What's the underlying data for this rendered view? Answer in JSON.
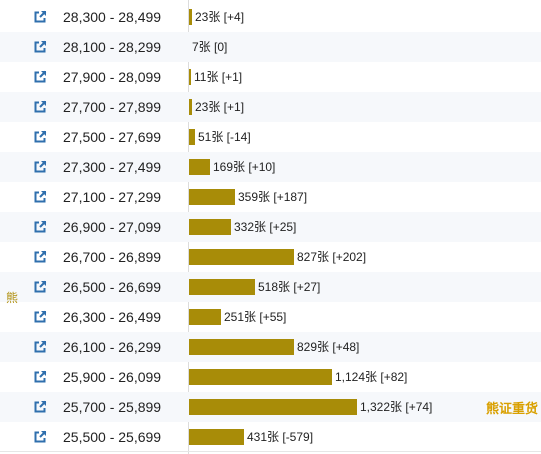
{
  "side_label": "熊",
  "tag_label": "熊证重货",
  "icon": "external-link-icon",
  "bar_color": "#a88c08",
  "bar_max_value": 1322,
  "rows": [
    {
      "range": "28,300 - 28,499",
      "value": 23,
      "value_label": "23张 [+4]"
    },
    {
      "range": "28,100 - 28,299",
      "value": 7,
      "value_label": "7张 [0]"
    },
    {
      "range": "27,900 - 28,099",
      "value": 11,
      "value_label": "11张 [+1]"
    },
    {
      "range": "27,700 - 27,899",
      "value": 23,
      "value_label": "23张 [+1]"
    },
    {
      "range": "27,500 - 27,699",
      "value": 51,
      "value_label": "51张 [-14]"
    },
    {
      "range": "27,300 - 27,499",
      "value": 169,
      "value_label": "169张 [+10]"
    },
    {
      "range": "27,100 - 27,299",
      "value": 359,
      "value_label": "359张 [+187]"
    },
    {
      "range": "26,900 - 27,099",
      "value": 332,
      "value_label": "332张 [+25]"
    },
    {
      "range": "26,700 - 26,899",
      "value": 827,
      "value_label": "827张 [+202]"
    },
    {
      "range": "26,500 - 26,699",
      "value": 518,
      "value_label": "518张 [+27]"
    },
    {
      "range": "26,300 - 26,499",
      "value": 251,
      "value_label": "251张 [+55]"
    },
    {
      "range": "26,100 - 26,299",
      "value": 829,
      "value_label": "829张 [+48]"
    },
    {
      "range": "25,900 - 26,099",
      "value": 1124,
      "value_label": "1,124张 [+82]"
    },
    {
      "range": "25,700 - 25,899",
      "value": 1322,
      "value_label": "1,322张 [+74]"
    },
    {
      "range": "25,500 - 25,699",
      "value": 431,
      "value_label": "431张 [-579]"
    }
  ]
}
